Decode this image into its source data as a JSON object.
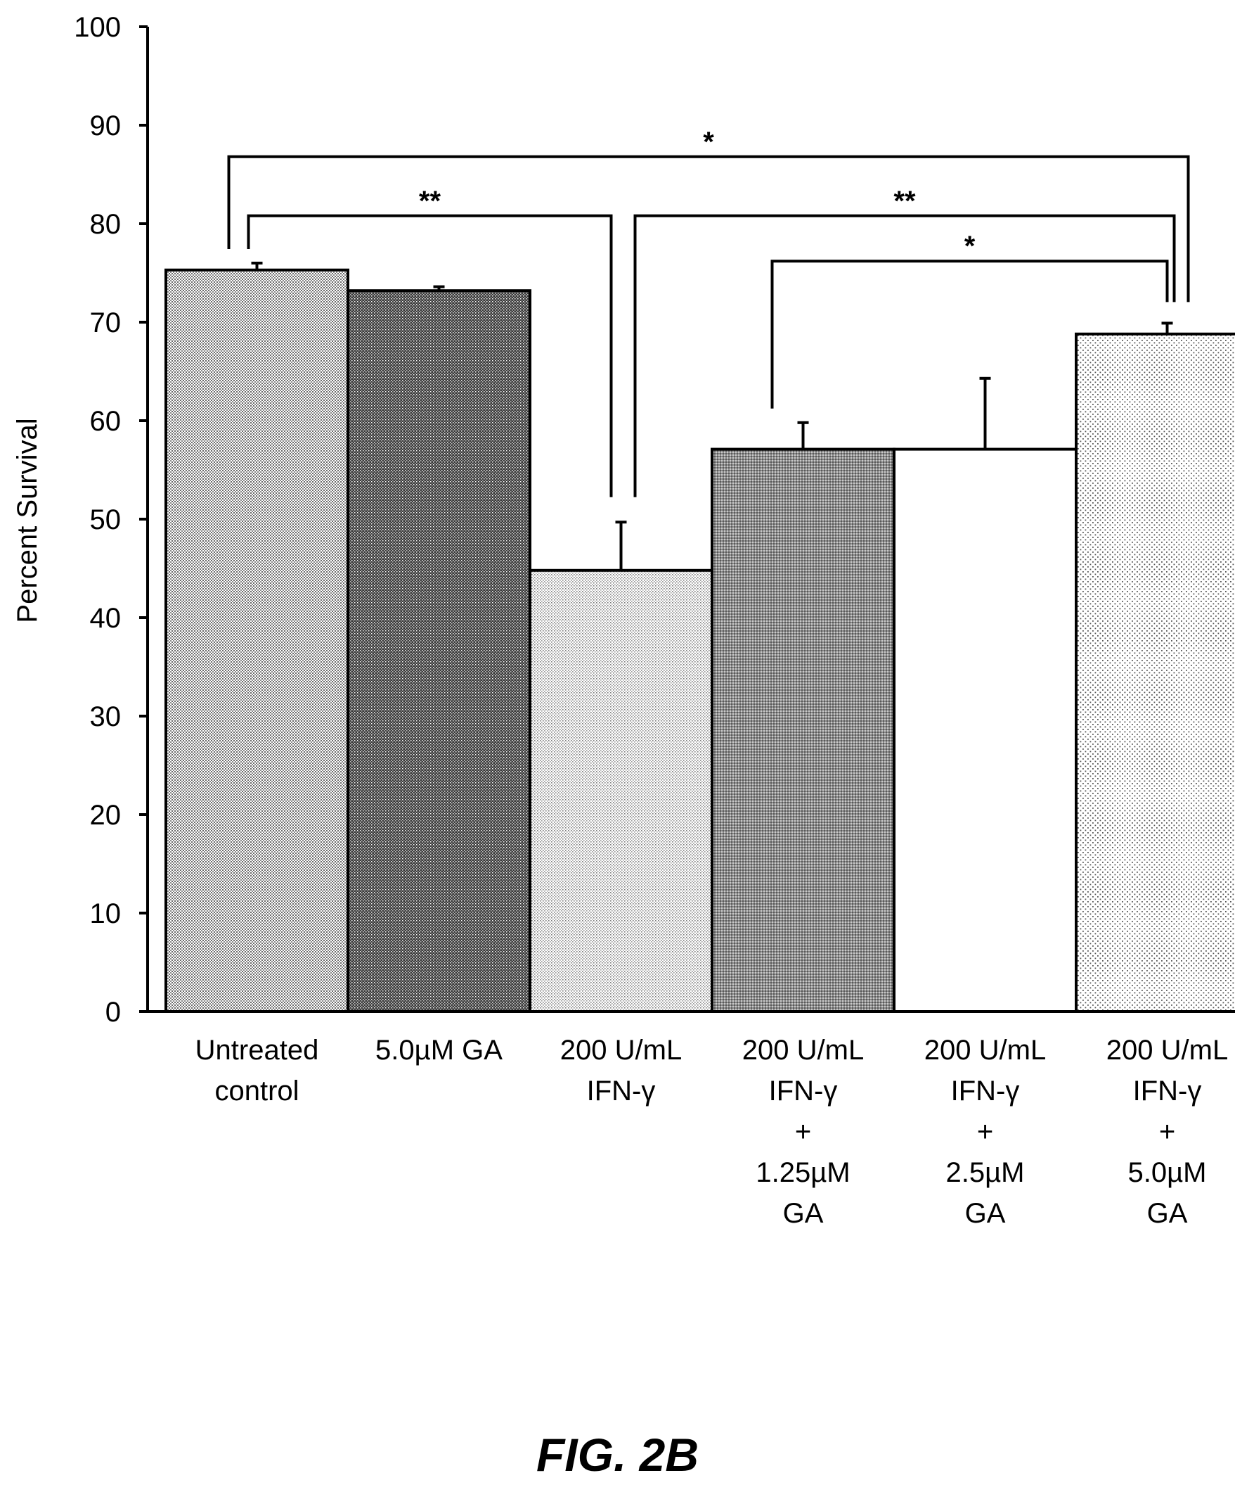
{
  "chart_data": {
    "type": "bar",
    "categories": [
      [
        "Untreated",
        "control"
      ],
      [
        "5.0µM GA"
      ],
      [
        "200 U/mL",
        "IFN-γ"
      ],
      [
        "200 U/mL",
        "IFN-γ",
        "+",
        "1.25µM",
        "GA"
      ],
      [
        "200 U/mL",
        "IFN-γ",
        "+",
        "2.5µM",
        "GA"
      ],
      [
        "200 U/mL",
        "IFN-γ",
        "+",
        "5.0µM",
        "GA"
      ]
    ],
    "values": [
      75.3,
      73.2,
      44.8,
      57.1,
      57.1,
      68.8
    ],
    "errors": [
      0.7,
      0.4,
      4.9,
      2.7,
      7.2,
      1.1
    ],
    "fills": [
      "light-dots",
      "dark-dots",
      "fine-dots",
      "medium-dots",
      "white",
      "sparse-dots"
    ],
    "ylabel": "Percent Survival",
    "xlabel": "",
    "ylim": [
      0,
      100
    ],
    "yticks": [
      0,
      10,
      20,
      30,
      40,
      50,
      60,
      70,
      80,
      90,
      100
    ],
    "grid": false,
    "significance": [
      {
        "from": 0,
        "to": 5,
        "label": "*",
        "level": 86.8
      },
      {
        "from": 0,
        "to": 2,
        "label": "**",
        "level": 80.8
      },
      {
        "from": 2,
        "to": 5,
        "label": "**",
        "level": 80.8
      },
      {
        "from": 3,
        "to": 5,
        "label": "*",
        "level": 76.2
      }
    ]
  },
  "figure": {
    "caption": "FIG. 2B"
  }
}
